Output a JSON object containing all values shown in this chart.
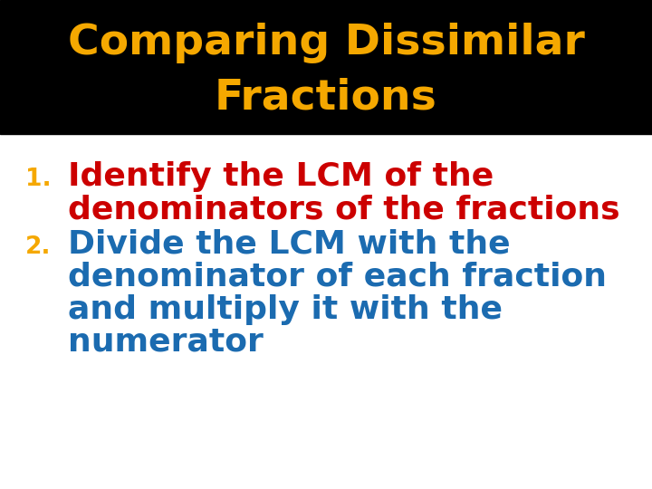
{
  "title_line1": "Comparing Dissimilar",
  "title_line2": "Fractions",
  "title_color": "#F5A800",
  "title_bg_color": "#000000",
  "body_bg_color": "#FFFFFF",
  "item1_number": "1.",
  "item1_number_color": "#F5A800",
  "item1_text_line1": "Identify the LCM of the",
  "item1_text_line2": "denominators of the fractions",
  "item1_text_color": "#CC0000",
  "item2_number": "2.",
  "item2_number_color": "#F5A800",
  "item2_text_line1": "Divide the LCM with the",
  "item2_text_line2": "denominator of each fraction",
  "item2_text_line3": "and multiply it with the",
  "item2_text_line4": "numerator",
  "item2_text_color": "#1B6BB0",
  "title_fontsize": 34,
  "number_fontsize": 19,
  "body_fontsize": 26
}
